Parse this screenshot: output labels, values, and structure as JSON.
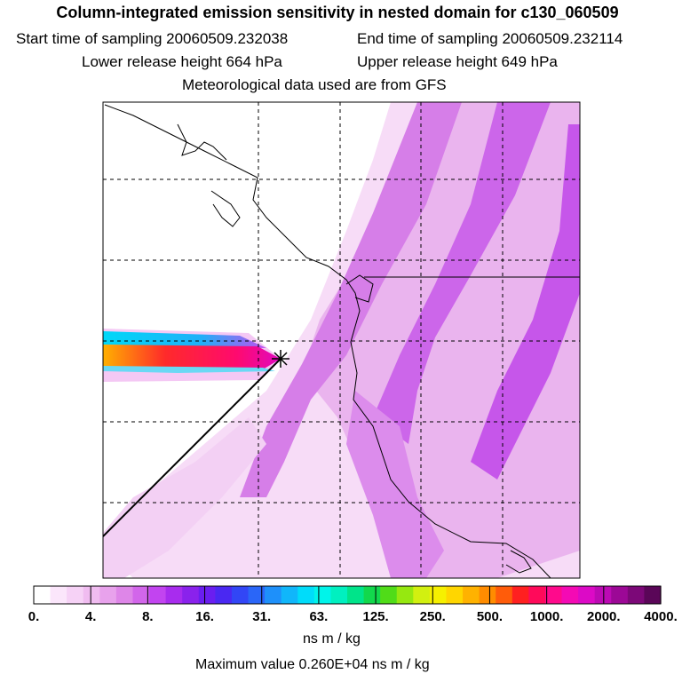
{
  "header": {
    "title": "Column-integrated emission sensitivity in nested domain for c130_060509",
    "start_label": "Start time of sampling 20060509.232038",
    "end_label": "End time of sampling 20060509.232114",
    "lower_label": "Lower release height  664 hPa",
    "upper_label": "Upper release height  649 hPa",
    "met_label": "Meteorological data used are from GFS"
  },
  "colorbar": {
    "labels": [
      "0.",
      "4.",
      "8.",
      "16.",
      "31.",
      "63.",
      "125.",
      "250.",
      "500.",
      "1000.",
      "2000.",
      "4000."
    ],
    "colors": [
      "#ffffff",
      "#fbe6fb",
      "#f6d2f6",
      "#f0bcf0",
      "#e8a2ec",
      "#de86e8",
      "#d266ea",
      "#c244f0",
      "#a82cee",
      "#8a22ec",
      "#6a1ef0",
      "#4a28f2",
      "#3246f6",
      "#2a66f8",
      "#1e90fa",
      "#10b6fa",
      "#00dcfa",
      "#00f4ea",
      "#00f0c0",
      "#00e48a",
      "#12d84c",
      "#50dc18",
      "#96e810",
      "#d2f010",
      "#f6f000",
      "#ffd600",
      "#ffb200",
      "#ff8c00",
      "#ff5c0a",
      "#ff2020",
      "#ff0a5a",
      "#ff0a8c",
      "#f40ab4",
      "#dc0ac6",
      "#bc0ab4",
      "#9c0896",
      "#7c0878",
      "#5a0658"
    ],
    "unit": "ns m / kg",
    "max_label": "Maximum value  0.260E+04 ns m / kg"
  },
  "chart_data": {
    "type": "heatmap",
    "title": "Column-integrated emission sensitivity in nested domain for c130_060509",
    "colorbar_unit": "ns m / kg",
    "colorbar_ticks": [
      0,
      4,
      8,
      16,
      31,
      63,
      125,
      250,
      500,
      1000,
      2000,
      4000
    ],
    "maximum_value": 2600,
    "grid": true,
    "release_point_marker": "star",
    "description_fields": {
      "sampling_start": "20060509.232038",
      "sampling_end": "20060509.232114",
      "lower_release_hpa": 664,
      "upper_release_hpa": 649,
      "met_data": "GFS"
    }
  }
}
